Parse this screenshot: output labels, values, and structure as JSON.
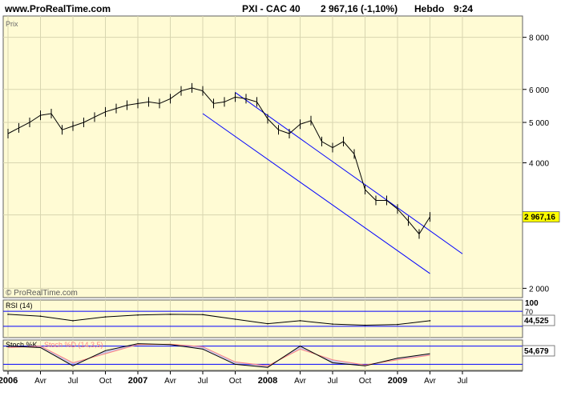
{
  "header": {
    "site": "www.ProRealTime.com",
    "instrument": "PXI - CAC 40",
    "quote": "2 967,16 (-1,10%)",
    "period": "Hebdo",
    "time": "9:24"
  },
  "colors": {
    "panel_bg": "#fffbd4",
    "grid": "#d8d6b0",
    "price_line": "#000000",
    "channel": "#0000ff",
    "rsi_ref": "#0000ff",
    "stoch_fast": "#000000",
    "stoch_slow": "#ff8080",
    "stoch_fill": "#9090ff",
    "last_price_bg": "#ffff00"
  },
  "chart_data": [
    {
      "type": "line",
      "title": "PXI - CAC 40",
      "panel_label": "Prix",
      "watermark": "© ProRealTime.com",
      "y_scale": "log",
      "ylim": [
        1900,
        9000
      ],
      "y_ticks": [
        2000,
        3000,
        4000,
        5000,
        6000,
        8000
      ],
      "y_tick_labels": [
        "2 000",
        "3 000",
        "4 000",
        "5 000",
        "6 000",
        "8 000"
      ],
      "last_value": 2967.16,
      "last_value_label": "2 967,16",
      "x": [
        "2006-01",
        "2006-02",
        "2006-03",
        "2006-04",
        "2006-05",
        "2006-06",
        "2006-07",
        "2006-08",
        "2006-09",
        "2006-10",
        "2006-11",
        "2006-12",
        "2007-01",
        "2007-02",
        "2007-03",
        "2007-04",
        "2007-05",
        "2007-06",
        "2007-07",
        "2007-08",
        "2007-09",
        "2007-10",
        "2007-11",
        "2007-12",
        "2008-01",
        "2008-02",
        "2008-03",
        "2008-04",
        "2008-05",
        "2008-06",
        "2008-07",
        "2008-08",
        "2008-09",
        "2008-10",
        "2008-11",
        "2008-12",
        "2009-01",
        "2009-02",
        "2009-03",
        "2009-04"
      ],
      "series": [
        {
          "values": [
            4700,
            4850,
            5000,
            5200,
            5250,
            4800,
            4900,
            5000,
            5150,
            5300,
            5400,
            5500,
            5550,
            5600,
            5550,
            5700,
            5950,
            6050,
            5950,
            5550,
            5600,
            5750,
            5700,
            5600,
            5100,
            4800,
            4700,
            4950,
            5050,
            4500,
            4350,
            4500,
            4200,
            3450,
            3250,
            3250,
            3100,
            2900,
            2700,
            2967
          ]
        }
      ],
      "channel": {
        "upper": [
          [
            "2007-10",
            5900
          ],
          [
            "2009-07",
            2420
          ]
        ],
        "lower": [
          [
            "2007-07",
            5250
          ],
          [
            "2009-04",
            2170
          ]
        ]
      },
      "x_tick_labels": [
        "2006",
        "Avr",
        "Jul",
        "Oct",
        "2007",
        "Avr",
        "Jul",
        "Oct",
        "2008",
        "Avr",
        "Jul",
        "Oct",
        "2009",
        "Avr",
        "Jul"
      ]
    },
    {
      "type": "line",
      "title": "RSI (14)",
      "ylim": [
        0,
        100
      ],
      "reference_levels": [
        30,
        70
      ],
      "y_tick_labels": [
        "100",
        "70"
      ],
      "last_value_label": "44,525",
      "x": [
        "2006-01",
        "2006-04",
        "2006-07",
        "2006-10",
        "2007-01",
        "2007-04",
        "2007-07",
        "2007-10",
        "2008-01",
        "2008-04",
        "2008-07",
        "2008-10",
        "2009-01",
        "2009-04"
      ],
      "series": [
        {
          "name": "RSI (14)",
          "values": [
            62,
            57,
            45,
            55,
            60,
            62,
            61,
            49,
            37,
            45,
            36,
            33,
            35,
            45
          ]
        }
      ]
    },
    {
      "type": "line",
      "title": "Stoch %K",
      "legend": [
        "Stoch %K",
        "Stoch %D (14,3,5)"
      ],
      "ylim": [
        0,
        100
      ],
      "reference_levels": [
        20,
        80
      ],
      "last_value_label": "54,679",
      "x": [
        "2006-01",
        "2006-04",
        "2006-07",
        "2006-10",
        "2007-01",
        "2007-04",
        "2007-07",
        "2007-10",
        "2008-01",
        "2008-04",
        "2008-07",
        "2008-10",
        "2009-01",
        "2009-04"
      ],
      "series": [
        {
          "name": "Stoch %K",
          "values": [
            80,
            75,
            15,
            65,
            88,
            85,
            70,
            20,
            10,
            80,
            25,
            15,
            40,
            55
          ]
        },
        {
          "name": "Stoch %D (14,3,5)",
          "values": [
            75,
            80,
            25,
            55,
            85,
            86,
            78,
            28,
            15,
            70,
            35,
            18,
            35,
            50
          ]
        }
      ]
    }
  ]
}
